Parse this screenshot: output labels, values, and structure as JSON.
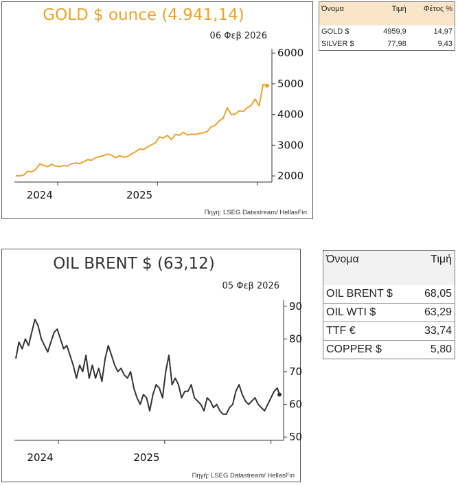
{
  "gold_chart": {
    "title": "GOLD $ ounce (4.941,14)",
    "date": "06 Φεβ 2026",
    "source": "Πηγή: LSEG Datastream/ HellasFin",
    "color": "#f0a126"
  },
  "oil_chart": {
    "title": "OIL BRENT $ (63,12)",
    "date": "05 Φεβ 2026",
    "source": "Πηγή: LSEG Datastream/ HellasFin",
    "color": "#333333"
  },
  "metals_table": {
    "headers": [
      "Όνομα",
      "Τιμή",
      "Φέτος %"
    ],
    "rows": [
      {
        "name": "GOLD $",
        "price": "4959,9",
        "ytd": "14,97"
      },
      {
        "name": "SILVER $",
        "price": "77,98",
        "ytd": "9,43"
      }
    ],
    "header_color": "#fbe5c8"
  },
  "energy_table": {
    "headers": [
      "Όνομα",
      "Τιμή"
    ],
    "rows": [
      {
        "name": "OIL BRENT $",
        "price": "68,05"
      },
      {
        "name": "OIL WTI $",
        "price": "63,29"
      },
      {
        "name": "TTF €",
        "price": "33,74"
      },
      {
        "name": "COPPER $",
        "price": "5,80"
      }
    ]
  },
  "chart_data": [
    {
      "type": "line",
      "title": "GOLD $ ounce (4.941,14)",
      "x_ticks": [
        "2024",
        "2025"
      ],
      "y_ticks": [
        2000,
        3000,
        4000,
        5000,
        6000
      ],
      "ylim": [
        1800,
        6050
      ],
      "xlim": [
        2023.58,
        2026.1
      ],
      "grid": false,
      "x": [
        2023.58,
        2023.62,
        2023.66,
        2023.7,
        2023.74,
        2023.78,
        2023.82,
        2023.86,
        2023.9,
        2023.94,
        2023.98,
        2024.02,
        2024.06,
        2024.1,
        2024.14,
        2024.18,
        2024.22,
        2024.26,
        2024.3,
        2024.34,
        2024.38,
        2024.42,
        2024.46,
        2024.5,
        2024.54,
        2024.58,
        2024.62,
        2024.66,
        2024.7,
        2024.74,
        2024.78,
        2024.82,
        2024.86,
        2024.9,
        2024.94,
        2024.98,
        2025.02,
        2025.06,
        2025.1,
        2025.14,
        2025.18,
        2025.22,
        2025.26,
        2025.3,
        2025.34,
        2025.38,
        2025.42,
        2025.46,
        2025.5,
        2025.54,
        2025.58,
        2025.62,
        2025.66,
        2025.7,
        2025.74,
        2025.78,
        2025.82,
        2025.86,
        2025.9,
        2025.94,
        2025.98,
        2026.02,
        2026.06,
        2026.1
      ],
      "y": [
        2010,
        2000,
        2030,
        2150,
        2130,
        2210,
        2390,
        2340,
        2300,
        2380,
        2320,
        2300,
        2340,
        2320,
        2400,
        2420,
        2400,
        2460,
        2530,
        2510,
        2590,
        2630,
        2660,
        2710,
        2680,
        2590,
        2660,
        2610,
        2630,
        2720,
        2780,
        2880,
        2860,
        2940,
        3010,
        3080,
        3270,
        3230,
        3320,
        3180,
        3350,
        3320,
        3420,
        3330,
        3360,
        3350,
        3380,
        3400,
        3450,
        3600,
        3650,
        3790,
        3880,
        4220,
        4000,
        4010,
        4120,
        4100,
        4220,
        4300,
        4500,
        4280,
        4980,
        4941
      ],
      "series": [
        {
          "name": "",
          "color": "#f0a126"
        }
      ]
    },
    {
      "type": "line",
      "title": "OIL BRENT $ (63,12)",
      "x_ticks": [
        "2024",
        "2025"
      ],
      "y_ticks": [
        50,
        60,
        70,
        80,
        90
      ],
      "ylim": [
        49,
        91
      ],
      "xlim": [
        2023.62,
        2026.1
      ],
      "grid": false,
      "x": [
        2023.62,
        2023.65,
        2023.68,
        2023.71,
        2023.74,
        2023.77,
        2023.8,
        2023.83,
        2023.86,
        2023.89,
        2023.92,
        2023.95,
        2023.98,
        2024.01,
        2024.04,
        2024.07,
        2024.1,
        2024.13,
        2024.16,
        2024.19,
        2024.22,
        2024.25,
        2024.28,
        2024.31,
        2024.34,
        2024.37,
        2024.4,
        2024.43,
        2024.46,
        2024.49,
        2024.52,
        2024.55,
        2024.58,
        2024.61,
        2024.64,
        2024.67,
        2024.7,
        2024.73,
        2024.76,
        2024.79,
        2024.82,
        2024.85,
        2024.88,
        2024.91,
        2024.94,
        2024.97,
        2025.0,
        2025.03,
        2025.06,
        2025.09,
        2025.12,
        2025.15,
        2025.18,
        2025.21,
        2025.24,
        2025.27,
        2025.3,
        2025.33,
        2025.36,
        2025.39,
        2025.42,
        2025.45,
        2025.48,
        2025.51,
        2025.54,
        2025.57,
        2025.6,
        2025.63,
        2025.66,
        2025.69,
        2025.72,
        2025.75,
        2025.78,
        2025.81,
        2025.84,
        2025.87,
        2025.9,
        2025.93,
        2025.96,
        2025.99,
        2026.02,
        2026.05,
        2026.08,
        2026.1
      ],
      "y": [
        74,
        79,
        77,
        80,
        78,
        82,
        86,
        84,
        80,
        78,
        76,
        79,
        82,
        83,
        80,
        77,
        78,
        75,
        72,
        68,
        72,
        70,
        75,
        68,
        72,
        68,
        71,
        67,
        74,
        78,
        75,
        72,
        70,
        71,
        69,
        68,
        70,
        65,
        62,
        60,
        63,
        62,
        58,
        63,
        66,
        65,
        62,
        70,
        75,
        66,
        68,
        66,
        62,
        64,
        64,
        66,
        62,
        61,
        60,
        58,
        62,
        61,
        59,
        60,
        58,
        57,
        57,
        59,
        60,
        64,
        66,
        63,
        61,
        60,
        61,
        62,
        60,
        59,
        58,
        60,
        62,
        64,
        65,
        63
      ],
      "series": [
        {
          "name": "",
          "color": "#333333"
        }
      ]
    }
  ]
}
